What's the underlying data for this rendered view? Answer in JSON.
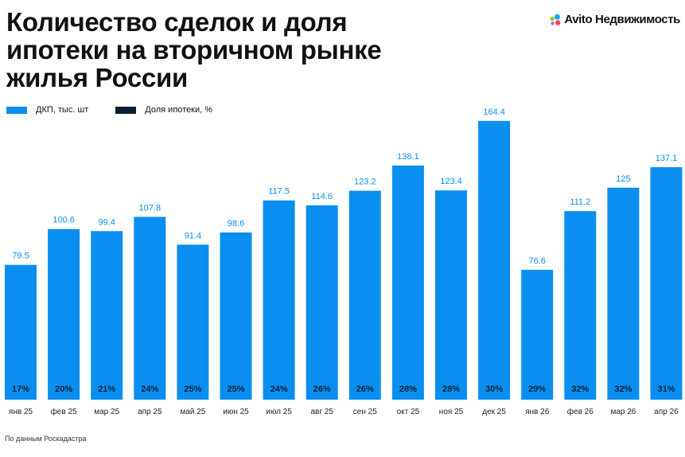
{
  "title": "Количество сделок и доля ипотеки на вторичном рынке жилья России",
  "brand": {
    "name": "Avito Недвижимость",
    "logo_icon": "avito-logo-icon"
  },
  "source": "По данным Роскадастра",
  "colors": {
    "bar": "#0A8FF0",
    "value_label": "#0A8FF0",
    "share_label": "#0B1F33",
    "mortgage_legend": "#0B1F33"
  },
  "chart_data": {
    "type": "bar",
    "categories": [
      "янв 25",
      "фев 25",
      "мар 25",
      "апр 25",
      "май 25",
      "июн 25",
      "июл 25",
      "авг 25",
      "сен 25",
      "окт 25",
      "ноя 25",
      "дек 25",
      "янв 26",
      "фев 26",
      "мар 26",
      "апр 26"
    ],
    "series": [
      {
        "name": "ДКП, тыс. шт",
        "values": [
          79.5,
          100.6,
          99.4,
          107.8,
          91.4,
          98.6,
          117.5,
          114.6,
          123.2,
          138.1,
          123.4,
          164.4,
          76.6,
          111.2,
          125,
          137.1
        ]
      },
      {
        "name": "Доля ипотеки, %",
        "values": [
          17,
          20,
          21,
          24,
          25,
          25,
          24,
          26,
          26,
          28,
          28,
          30,
          29,
          32,
          32,
          31
        ]
      }
    ],
    "value_labels": [
      "79.5",
      "100.6",
      "99.4",
      "107.8",
      "91.4",
      "98.6",
      "117.5",
      "114.6",
      "123.2",
      "138.1",
      "123.4",
      "164.4",
      "76.6",
      "111.2",
      "125",
      "137.1"
    ],
    "share_labels": [
      "17%",
      "20%",
      "21%",
      "24%",
      "25%",
      "25%",
      "24%",
      "26%",
      "26%",
      "28%",
      "28%",
      "30%",
      "29%",
      "32%",
      "32%",
      "31%"
    ],
    "legend_position": "top-left",
    "grid": false
  }
}
